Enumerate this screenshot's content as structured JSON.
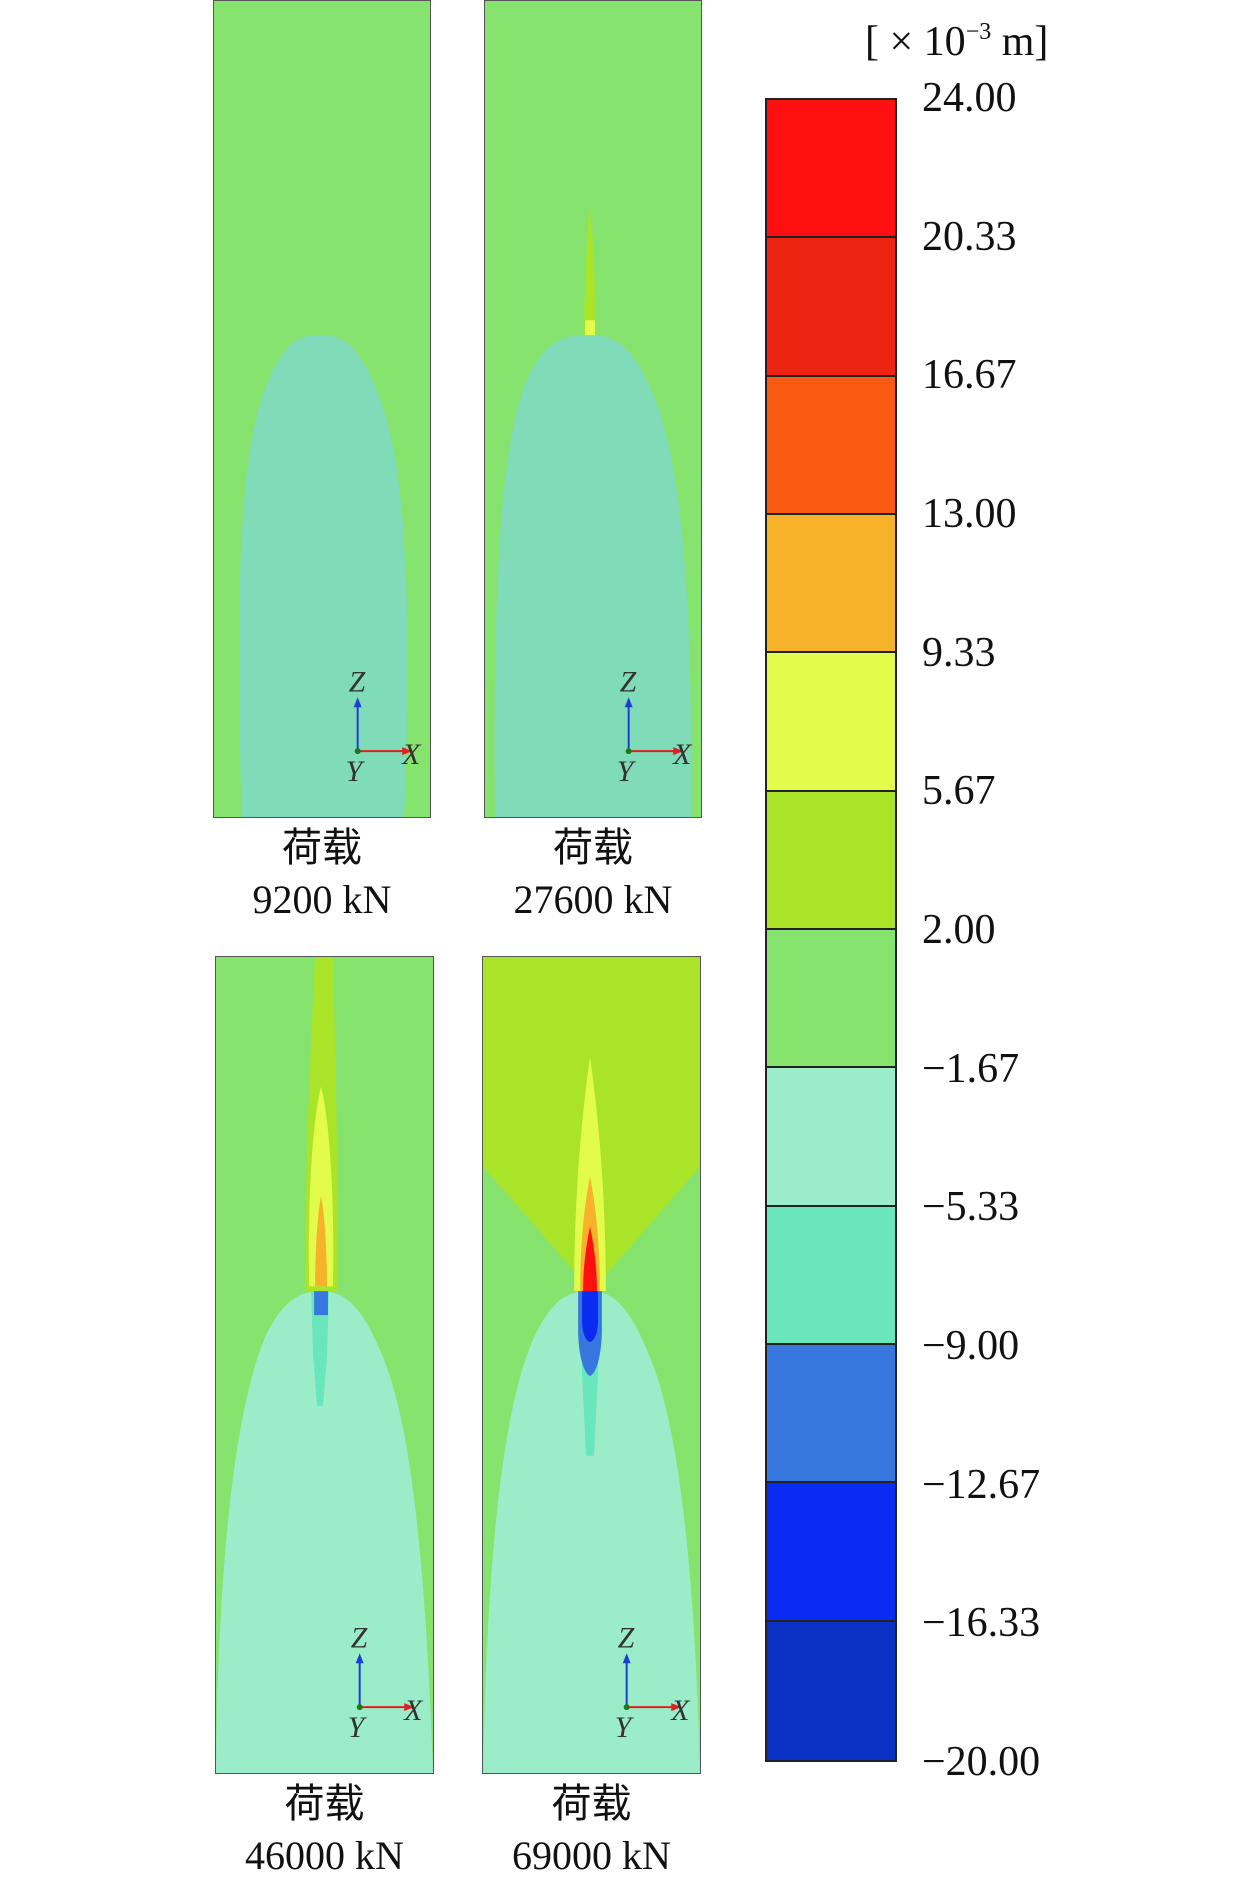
{
  "panels": [
    {
      "id": "p1",
      "caption_line1": "荷载",
      "caption_line2": "9200 kN"
    },
    {
      "id": "p2",
      "caption_line1": "荷载",
      "caption_line2": "27600 kN"
    },
    {
      "id": "p3",
      "caption_line1": "荷载",
      "caption_line2": "46000 kN"
    },
    {
      "id": "p4",
      "caption_line1": "荷载",
      "caption_line2": "69000 kN"
    }
  ],
  "axes_labels": {
    "z": "Z",
    "x": "X",
    "y": "Y"
  },
  "colorbar": {
    "unit_prefix": "[ × 10",
    "unit_exp": "−3",
    "unit_suffix": " m]",
    "ticks": [
      "24.00",
      "20.33",
      "16.67",
      "13.00",
      "9.33",
      "5.67",
      "2.00",
      "−1.67",
      "−5.33",
      "−9.00",
      "−12.67",
      "−16.33",
      "−20.00"
    ],
    "colors": [
      "#fe1010",
      "#ee2412",
      "#fb5a12",
      "#f6b22a",
      "#e3fb4a",
      "#a9e429",
      "#86e36d",
      "#9bedca",
      "#69e6bc",
      "#3877dd",
      "#0a2cf2",
      "#0a30c4"
    ]
  }
}
